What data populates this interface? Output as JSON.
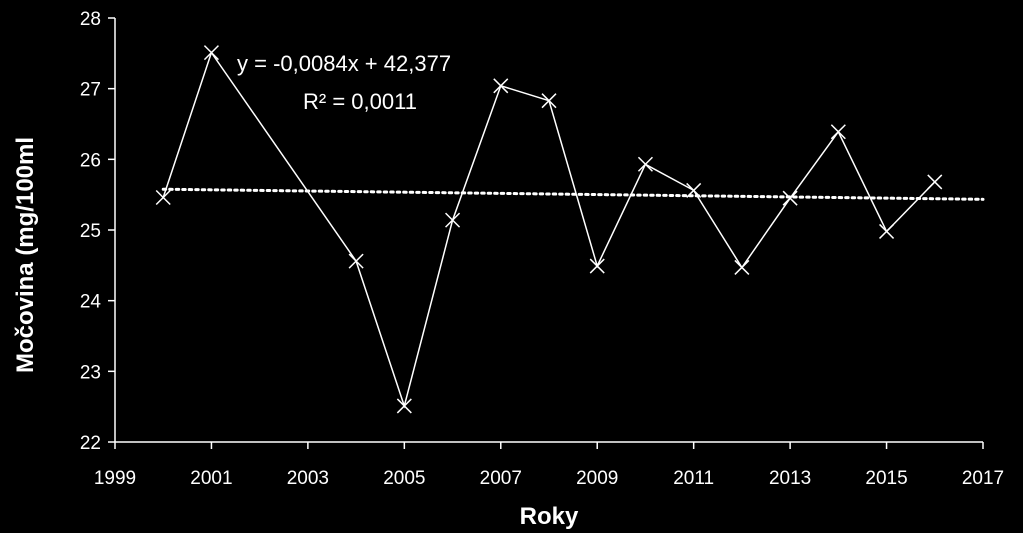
{
  "chart_data": {
    "type": "scatter",
    "xlabel": "Roky",
    "ylabel": "Močovina (mg/100ml",
    "xlim": [
      1999,
      2017
    ],
    "ylim": [
      22,
      28
    ],
    "x_ticks": [
      "1999",
      "2001",
      "2003",
      "2005",
      "2007",
      "2009",
      "2011",
      "2013",
      "2015",
      "2017"
    ],
    "y_ticks": [
      "22",
      "23",
      "24",
      "25",
      "26",
      "27",
      "28"
    ],
    "grid": false,
    "legend": "none",
    "marker": "x",
    "line_color": "#ffffff",
    "background": "#000000",
    "series": [
      {
        "x": [
          2000,
          2001,
          2004,
          2005,
          2006,
          2007,
          2008,
          2009,
          2010,
          2011,
          2012,
          2013,
          2014,
          2015,
          2016
        ],
        "y": [
          25.46,
          27.51,
          24.56,
          22.51,
          25.14,
          27.04,
          26.83,
          24.49,
          25.93,
          25.56,
          24.47,
          25.45,
          26.39,
          24.98,
          25.68
        ]
      }
    ],
    "trendline": {
      "type": "linear",
      "slope": -0.0084,
      "intercept": 42.377,
      "x_range": [
        2000,
        2017
      ],
      "style": "dotted",
      "equation_text": "y = -0,0084x + 42,377",
      "r2_text": "R² = 0,0011"
    }
  }
}
